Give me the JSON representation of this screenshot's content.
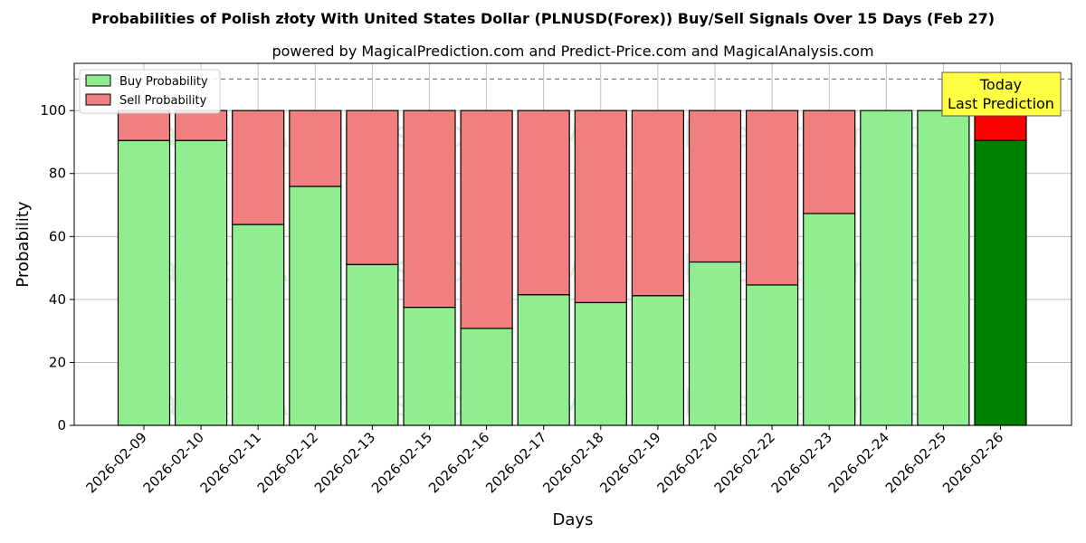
{
  "chart_data": {
    "type": "bar",
    "stacked": true,
    "title": "Probabilities of Polish złoty With United States Dollar (PLNUSD(Forex)) Buy/Sell Signals Over 15 Days (Feb 27)",
    "subtitle": "powered by MagicalPrediction.com and Predict-Price.com and MagicalAnalysis.com",
    "xlabel": "Days",
    "ylabel": "Probability",
    "ylim": [
      0,
      115
    ],
    "yticks": [
      0,
      20,
      40,
      60,
      80,
      100
    ],
    "reference_line": 110,
    "grid": true,
    "legend_position": "top-left",
    "categories": [
      "2026-02-09",
      "2026-02-10",
      "2026-02-11",
      "2026-02-12",
      "2026-02-13",
      "2026-02-15",
      "2026-02-16",
      "2026-02-17",
      "2026-02-18",
      "2026-02-19",
      "2026-02-20",
      "2026-02-22",
      "2026-02-23",
      "2026-02-24",
      "2026-02-25",
      "2026-02-26"
    ],
    "series": [
      {
        "name": "Buy Probability",
        "color": "#90ee90",
        "values": [
          90.5,
          90.5,
          63.8,
          75.9,
          51.1,
          37.5,
          30.8,
          41.5,
          39.0,
          41.2,
          51.9,
          44.6,
          67.3,
          100,
          100,
          90.5
        ]
      },
      {
        "name": "Sell Probability",
        "color": "#f08080",
        "values": [
          9.5,
          9.5,
          36.2,
          24.1,
          48.9,
          62.5,
          69.2,
          58.5,
          61.0,
          58.8,
          48.1,
          55.4,
          32.7,
          0,
          0,
          9.5
        ]
      }
    ],
    "highlight": {
      "index": 15,
      "buy_color": "#008000",
      "sell_color": "#ff0000"
    },
    "annotation": {
      "line1": "Today",
      "line2": "Last Prediction",
      "color": "#ffff44"
    },
    "watermarks": [
      "MagicalAnalysis.com",
      "MagicalPrediction.com"
    ]
  }
}
